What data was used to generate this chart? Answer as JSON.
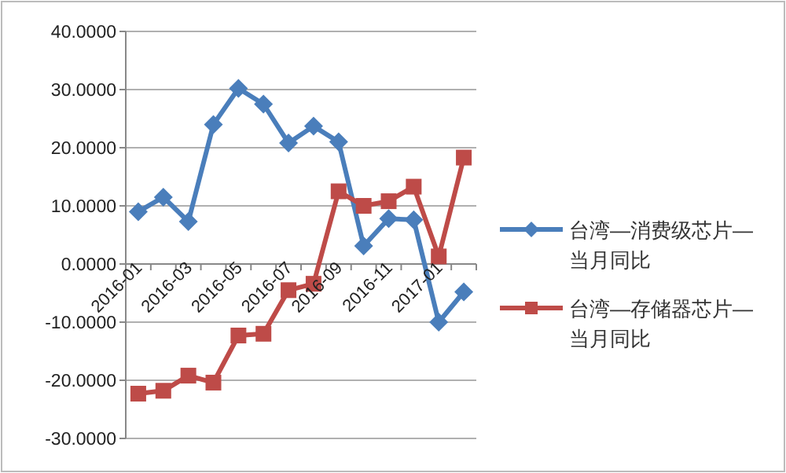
{
  "chart_data": {
    "type": "line",
    "categories": [
      "2016-01",
      null,
      "2016-03",
      null,
      "2016-05",
      null,
      "2016-07",
      null,
      "2016-09",
      null,
      "2016-11",
      null,
      "2017-01",
      null
    ],
    "series": [
      {
        "name": "台湾—消费级芯片—当月同比",
        "color": "#4a7ebb",
        "marker": "diamond",
        "values": [
          9,
          11.5,
          7.3,
          24,
          30.2,
          27.5,
          20.8,
          23.7,
          21,
          3.1,
          7.8,
          7.6,
          -10,
          -4.8
        ]
      },
      {
        "name": "台湾—存储器芯片—当月同比",
        "color": "#be4b48",
        "marker": "square",
        "values": [
          -22.3,
          -21.8,
          -19.2,
          -20.4,
          -12.3,
          -12,
          -4.5,
          -3.4,
          12.5,
          10,
          10.8,
          13.3,
          1.3,
          18.3
        ]
      }
    ],
    "ylim": [
      -30,
      40
    ],
    "yticks": [
      {
        "value": -30,
        "label": "-30.0000"
      },
      {
        "value": -20,
        "label": "-20.0000"
      },
      {
        "value": -10,
        "label": "-10.0000"
      },
      {
        "value": 0,
        "label": "0.0000"
      },
      {
        "value": 10,
        "label": "10.0000"
      },
      {
        "value": 20,
        "label": "20.0000"
      },
      {
        "value": 30,
        "label": "30.0000"
      },
      {
        "value": 40,
        "label": "40.0000"
      }
    ],
    "grid": "y",
    "legend": "right"
  }
}
